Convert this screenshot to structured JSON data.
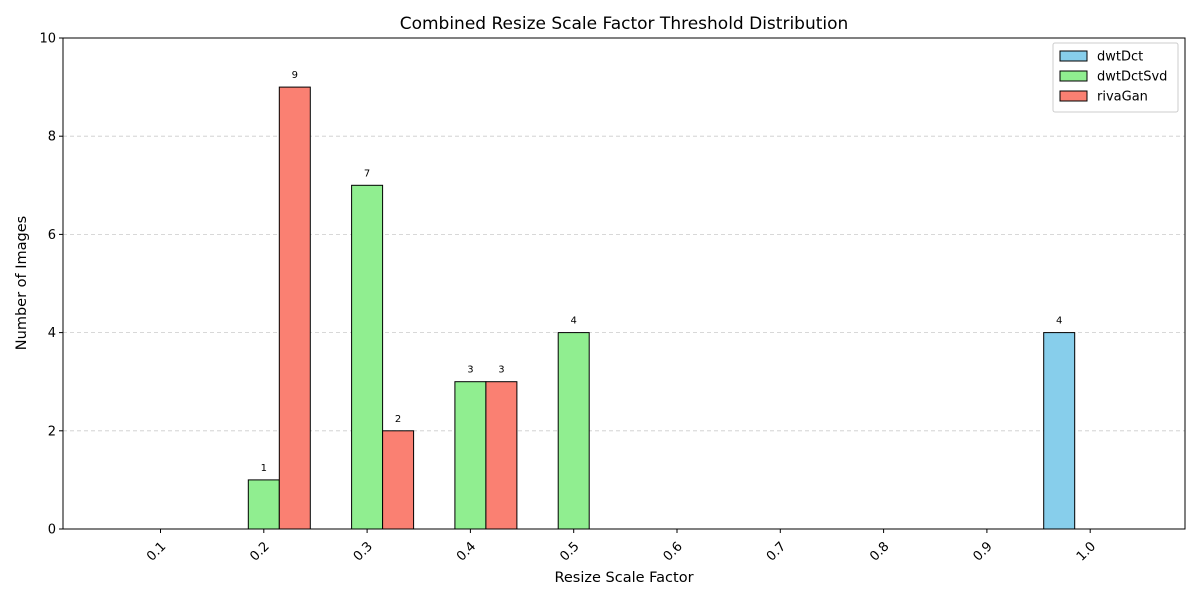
{
  "chart_data": {
    "type": "bar",
    "title": "Combined Resize Scale Factor Threshold Distribution",
    "xlabel": "Resize Scale Factor",
    "ylabel": "Number of Images",
    "categories": [
      "0.1",
      "0.2",
      "0.3",
      "0.4",
      "0.5",
      "0.6",
      "0.7",
      "0.8",
      "0.9",
      "1.0"
    ],
    "series": [
      {
        "name": "dwtDct",
        "color": "#87ceeb",
        "values": [
          0,
          0,
          0,
          0,
          0,
          0,
          0,
          0,
          0,
          4
        ]
      },
      {
        "name": "dwtDctSvd",
        "color": "#90ee90",
        "values": [
          0,
          1,
          7,
          3,
          4,
          0,
          0,
          0,
          0,
          0
        ]
      },
      {
        "name": "rivaGan",
        "color": "#fa8072",
        "values": [
          0,
          9,
          2,
          3,
          0,
          0,
          0,
          0,
          0,
          0
        ]
      }
    ],
    "ylim": [
      0,
      10
    ],
    "yticks": [
      0,
      2,
      4,
      6,
      8,
      10
    ],
    "grid": "y-dashed",
    "legend": "top-right",
    "xtick_rotation": 45
  }
}
